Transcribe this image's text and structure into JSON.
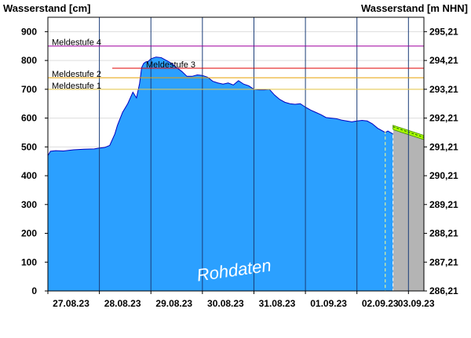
{
  "chart_data": {
    "type": "area",
    "left_axis_title": "Wasserstand [cm]",
    "right_axis_title": "Wasserstand [m NHN]",
    "y_left": {
      "min": 0,
      "max": 950,
      "ticks": [
        0,
        100,
        200,
        300,
        400,
        500,
        600,
        700,
        800,
        900
      ]
    },
    "y_right": {
      "ticks": [
        "286,21",
        "287,21",
        "288,21",
        "289,21",
        "290,21",
        "291,21",
        "292,21",
        "293,21",
        "294,21",
        "295,21"
      ]
    },
    "x_labels": [
      "27.08.23",
      "28.08.23",
      "29.08.23",
      "30.08.23",
      "31.08.23",
      "01.09.23",
      "02.09.23",
      "03.09.23"
    ],
    "x_range_days": [
      0,
      7.3
    ],
    "grid": true,
    "watermark": "Rohdaten",
    "stages": [
      {
        "label": "Meldestufe 4",
        "value": 850,
        "color": "#a000a0",
        "start_day": 0
      },
      {
        "label": "Meldestufe 3",
        "value": 773,
        "color": "#e00000",
        "start_day": 1.25
      },
      {
        "label": "Meldestufe 2",
        "value": 740,
        "color": "#e8a000",
        "start_day": 0
      },
      {
        "label": "Meldestufe 1",
        "value": 700,
        "color": "#e8c848",
        "start_day": 0
      }
    ],
    "colors": {
      "area": "#2ba0ff",
      "area_edge": "#0000c0",
      "forecast_band": "#b4b4b4",
      "forecast_line": "#aaff00",
      "grid": "#dddddd"
    },
    "series": [
      {
        "values_x": [
          0,
          0.05,
          0.15,
          0.3,
          0.5,
          0.7,
          0.9,
          1.0,
          1.1,
          1.2,
          1.3,
          1.35,
          1.45,
          1.55,
          1.65,
          1.72,
          1.78,
          1.82,
          1.86,
          1.9,
          1.95,
          2.0,
          2.1,
          2.2,
          2.3,
          2.4,
          2.5,
          2.6,
          2.7,
          2.8,
          2.9,
          3.0,
          3.1,
          3.2,
          3.3,
          3.4,
          3.5,
          3.6,
          3.7,
          3.8,
          3.9,
          4.0,
          4.1,
          4.2,
          4.3,
          4.4,
          4.5,
          4.6,
          4.7,
          4.8,
          4.9,
          5.0,
          5.1,
          5.2,
          5.3,
          5.4,
          5.5,
          5.6,
          5.7,
          5.8,
          5.9,
          6.0,
          6.1,
          6.2,
          6.3,
          6.4,
          6.5,
          6.55,
          6.6,
          6.7
        ],
        "values_y": [
          470,
          485,
          487,
          486,
          490,
          492,
          493,
          496,
          498,
          505,
          545,
          575,
          620,
          650,
          690,
          670,
          720,
          775,
          790,
          795,
          797,
          806,
          812,
          810,
          800,
          790,
          775,
          762,
          745,
          745,
          750,
          748,
          742,
          728,
          722,
          718,
          722,
          715,
          730,
          718,
          712,
          700,
          698,
          698,
          700,
          680,
          665,
          655,
          650,
          648,
          650,
          638,
          628,
          620,
          612,
          602,
          600,
          598,
          593,
          590,
          587,
          590,
          592,
          590,
          580,
          565,
          555,
          550,
          555,
          545
        ]
      }
    ],
    "forecast": {
      "start_day": 6.7,
      "end_day": 7.3,
      "upper": [
        575,
        540
      ],
      "lower": [
        560,
        525
      ],
      "line": [
        570,
        533
      ]
    }
  }
}
